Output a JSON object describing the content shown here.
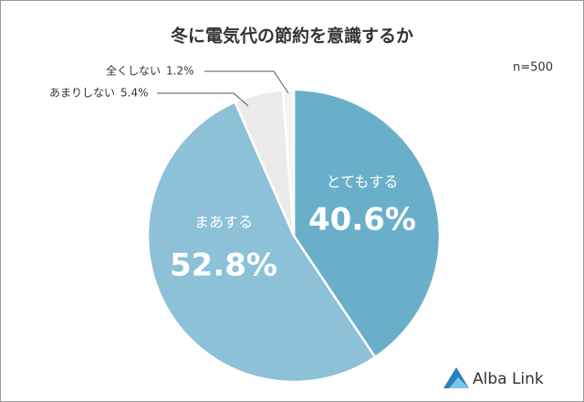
{
  "chart_data": {
    "type": "pie",
    "title": "冬に電気代の節約を意識するか",
    "note": "n=500",
    "categories": [
      "とてもする",
      "まあする",
      "あまりしない",
      "全くしない"
    ],
    "values": [
      40.6,
      52.8,
      5.4,
      1.2
    ],
    "value_labels": [
      "40.6%",
      "52.8%",
      "5.4%",
      "1.2%"
    ],
    "colors": [
      "#6aafca",
      "#8cc1d7",
      "#ebebeb",
      "#f4f4f4"
    ]
  },
  "logo": {
    "text": "Alba Link"
  }
}
